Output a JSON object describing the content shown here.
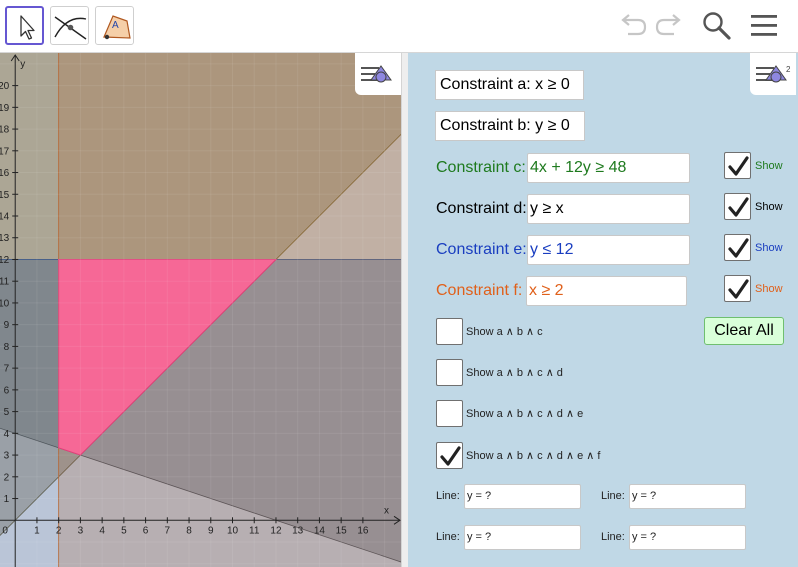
{
  "toolbar": {
    "tools": [
      {
        "name": "move-tool",
        "icon": "arrow-pointer-icon"
      },
      {
        "name": "intersect-tool",
        "icon": "intersect-lines-icon"
      },
      {
        "name": "polygon-tool",
        "icon": "polygon-icon"
      }
    ],
    "polygon_tool_letter": "A",
    "actions": [
      "undo",
      "redo",
      "search",
      "menu"
    ]
  },
  "graphics": {
    "x_axis_label": "x",
    "y_axis_label": "y",
    "x_ticks": [
      "0",
      "1",
      "2",
      "3",
      "4",
      "5",
      "6",
      "7",
      "8",
      "9",
      "10",
      "11",
      "12",
      "13",
      "14",
      "15",
      "16"
    ],
    "y_ticks": [
      "1",
      "2",
      "3",
      "4",
      "5",
      "6",
      "7",
      "8",
      "9",
      "10",
      "11",
      "12",
      "13",
      "14",
      "15",
      "16",
      "17",
      "18",
      "19",
      "20"
    ],
    "view": {
      "x_min": -0.7,
      "x_max": 17.8,
      "y_min": -2.15,
      "y_max": 21.5
    },
    "regions": [
      {
        "name": "region-c",
        "inequality": "4x + 12y >= 48",
        "color": "#5b5b5b"
      },
      {
        "name": "region-d",
        "inequality": "y >= x",
        "color": "#7a6a3a"
      },
      {
        "name": "region-e",
        "inequality": "y <= 12",
        "color": "#1a3e7a"
      },
      {
        "name": "region-f",
        "inequality": "x >= 2",
        "color": "#b05820"
      },
      {
        "name": "feasible-region",
        "inequality": "a ∧ b ∧ c ∧ d ∧ e ∧ f",
        "color": "#ff6699"
      }
    ]
  },
  "panel": {
    "constraint_a": "Constraint a: x ≥ 0",
    "constraint_b": "Constraint b: y ≥ 0",
    "constraints": [
      {
        "key": "c",
        "label": "Constraint c:",
        "value": "4x + 12y ≥ 48",
        "color": "#1e7a1e",
        "show_label": "Show",
        "checked": true
      },
      {
        "key": "d",
        "label": "Constraint d:",
        "value": "y ≥ x",
        "color": "#000000",
        "show_label": "Show",
        "checked": true
      },
      {
        "key": "e",
        "label": "Constraint e:",
        "value": "y ≤ 12",
        "color": "#1a3ec0",
        "show_label": "Show",
        "checked": true
      },
      {
        "key": "f",
        "label": "Constraint f:",
        "value": "x ≥ 2",
        "color": "#e0601a",
        "show_label": "Show",
        "checked": true
      }
    ],
    "combos": [
      {
        "label": "Show a ∧ b ∧ c",
        "checked": false
      },
      {
        "label": "Show a ∧ b ∧ c ∧ d",
        "checked": false
      },
      {
        "label": "Show a ∧ b ∧ c ∧ d ∧ e",
        "checked": false
      },
      {
        "label": "Show a ∧ b ∧ c ∧ d ∧ e ∧ f",
        "checked": true
      }
    ],
    "clear_all": "Clear All",
    "lines": [
      {
        "label": "Line:",
        "value": "y = ?"
      },
      {
        "label": "Line:",
        "value": "y = ?"
      },
      {
        "label": "Line:",
        "value": "y = ?"
      },
      {
        "label": "Line:",
        "value": "y = ?"
      }
    ]
  }
}
